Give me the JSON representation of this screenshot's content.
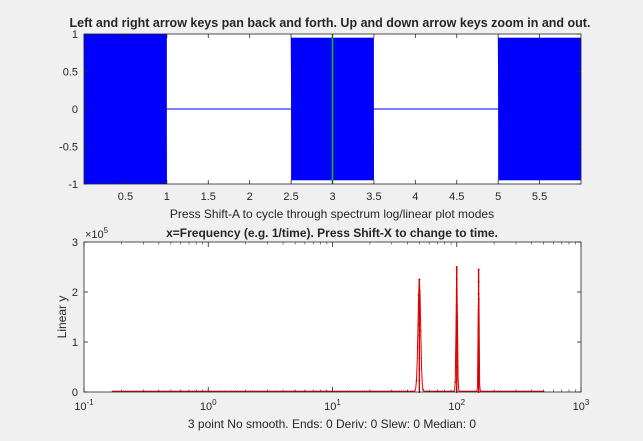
{
  "figure": {
    "title_top": "Left and right arrow keys pan back and forth. Up and down arrow keys zoom in and out.",
    "xlabel_top": "Press Shift-A to cycle through spectrum log/linear plot modes",
    "title_bottom": "x=Frequency (e.g. 1/time). Press Shift-X to change to time.",
    "ylabel_bottom": "Linear y",
    "xlabel_bottom": "3 point No smooth. Ends: 0   Deriv: 0   Slew: 0   Median: 0",
    "y_exponent_base": "×10",
    "y_exponent_power": "5",
    "colors": {
      "signal": "#0000ff",
      "cursor": "#00cc00",
      "spectrum": "#dd0000",
      "axes_bg": "#ffffff",
      "figure_bg": "#f0f0f0"
    }
  },
  "chart_data": [
    {
      "type": "line",
      "name": "signal-plot",
      "xlim": [
        0,
        6
      ],
      "ylim": [
        -1,
        1
      ],
      "xticks": [
        "0.5",
        "1",
        "1.5",
        "2",
        "2.5",
        "3",
        "3.5",
        "4",
        "4.5",
        "5",
        "5.5"
      ],
      "xtick_values": [
        0.5,
        1,
        1.5,
        2,
        2.5,
        3,
        3.5,
        4,
        4.5,
        5,
        5.5
      ],
      "yticks": [
        "-1",
        "-0.5",
        "0",
        "0.5",
        "1"
      ],
      "ytick_values": [
        -1,
        -0.5,
        0,
        0.5,
        1
      ],
      "bursts": [
        {
          "x_start": 0,
          "x_end": 1,
          "amplitude": 1.0
        },
        {
          "x_start": 2.5,
          "x_end": 3.5,
          "amplitude": 0.95
        },
        {
          "x_start": 5,
          "x_end": 6,
          "amplitude": 0.95
        }
      ],
      "baseline": 0,
      "cursor_x": 3
    },
    {
      "type": "line",
      "name": "spectrum-plot",
      "xscale": "log",
      "xlim": [
        0.1,
        1000
      ],
      "ylim": [
        0,
        300000
      ],
      "xticks": [
        {
          "base": "10",
          "exp": "-1",
          "value": 0.1
        },
        {
          "base": "10",
          "exp": "0",
          "value": 1
        },
        {
          "base": "10",
          "exp": "1",
          "value": 10
        },
        {
          "base": "10",
          "exp": "2",
          "value": 100
        },
        {
          "base": "10",
          "exp": "3",
          "value": 1000
        }
      ],
      "yticks": [
        "0",
        "1",
        "2",
        "3"
      ],
      "ytick_values": [
        0,
        100000,
        200000,
        300000
      ],
      "peaks": [
        {
          "x": 50,
          "y": 225000
        },
        {
          "x": 100,
          "y": 250000
        },
        {
          "x": 150,
          "y": 245000
        }
      ],
      "x_range": [
        0.17,
        500
      ]
    }
  ]
}
